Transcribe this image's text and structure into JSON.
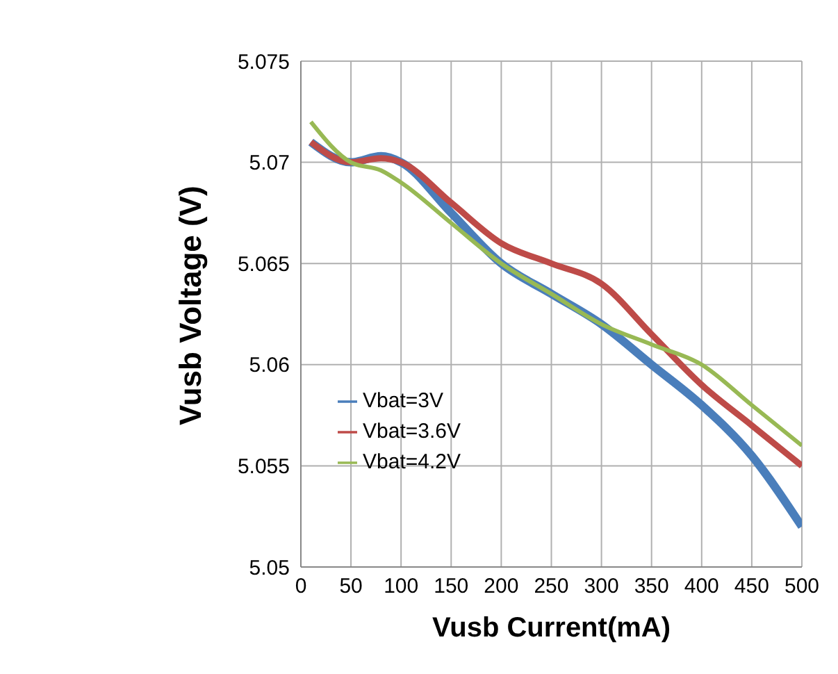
{
  "chart_data": {
    "type": "line",
    "xlabel": "Vusb Current(mA)",
    "ylabel": "Vusb Voltage (V)",
    "x": [
      10,
      50,
      80,
      100,
      150,
      200,
      250,
      300,
      350,
      400,
      450,
      500
    ],
    "series": [
      {
        "name": "Vbat=3V",
        "color": "#4a7ebb",
        "values": [
          5.071,
          5.07,
          5.0703,
          5.07,
          5.0675,
          5.065,
          5.0635,
          5.062,
          5.06,
          5.058,
          5.0555,
          5.052
        ]
      },
      {
        "name": "Vbat=3.6V",
        "color": "#be4b48",
        "values": [
          5.071,
          5.07,
          5.0702,
          5.07,
          5.068,
          5.066,
          5.065,
          5.064,
          5.0615,
          5.059,
          5.057,
          5.055
        ]
      },
      {
        "name": "Vbat=4.2V",
        "color": "#98b954",
        "values": [
          5.072,
          5.07,
          5.0696,
          5.069,
          5.067,
          5.065,
          5.0635,
          5.062,
          5.061,
          5.06,
          5.058,
          5.056
        ]
      }
    ],
    "xlim": [
      0,
      500
    ],
    "xticks": [
      0,
      50,
      100,
      150,
      200,
      250,
      300,
      350,
      400,
      450,
      500
    ],
    "ylim": [
      5.05,
      5.075
    ],
    "yticks": [
      5.05,
      5.055,
      5.06,
      5.065,
      5.07,
      5.075
    ],
    "grid": true,
    "legend": "bottom left",
    "marker": "none",
    "line_style": "solid"
  }
}
